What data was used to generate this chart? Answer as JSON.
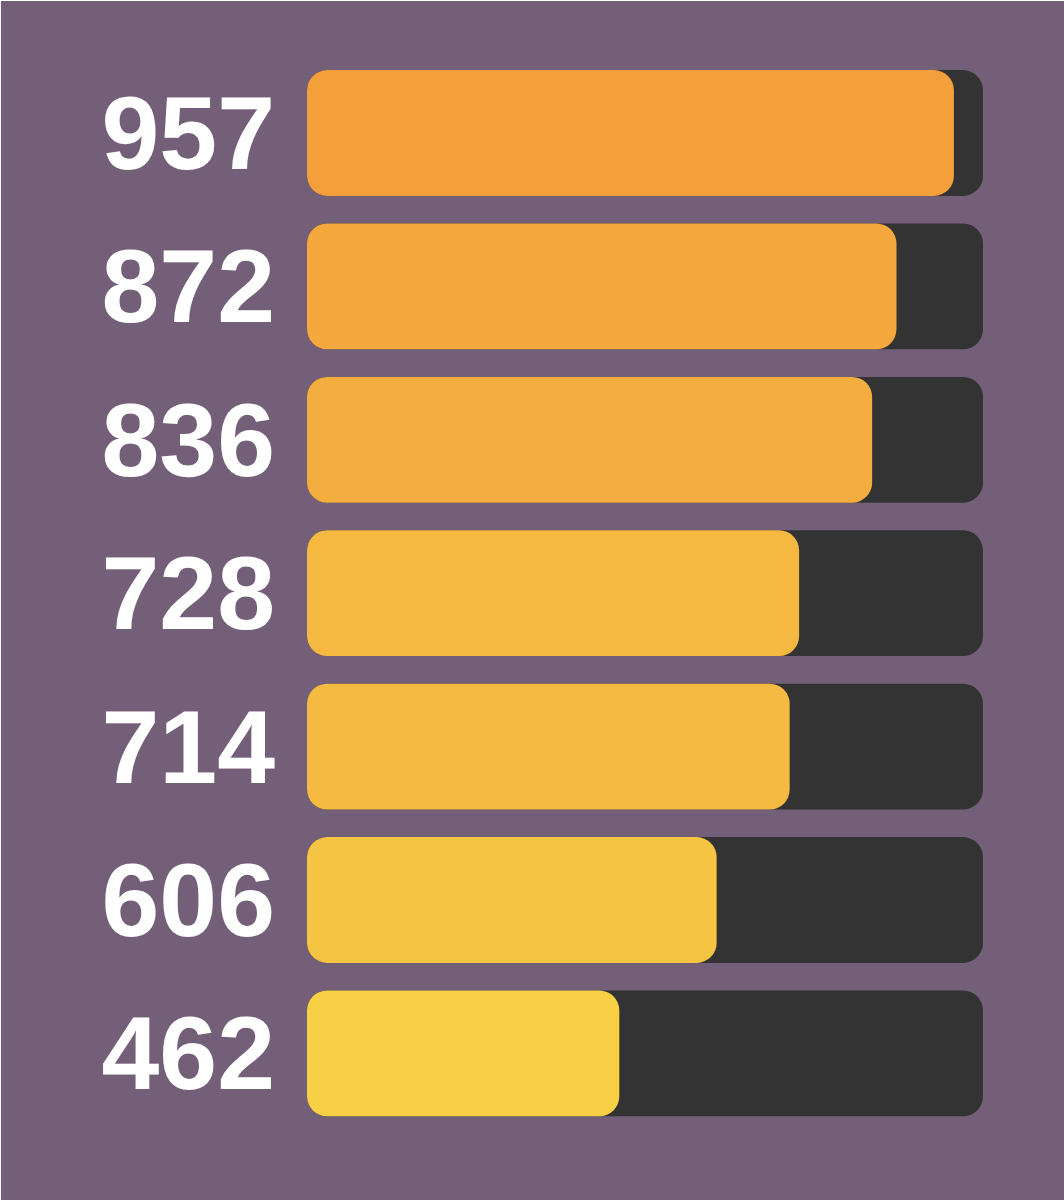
{
  "chart_data": {
    "type": "bar",
    "orientation": "horizontal",
    "categories": [
      null,
      null,
      null,
      null,
      null,
      null,
      null
    ],
    "values": [
      957,
      872,
      836,
      728,
      714,
      606,
      462
    ],
    "colors": [
      "#f39f3c",
      "#f4a83e",
      "#f4ad3f",
      "#f5b841",
      "#f5ba41",
      "#f6c443",
      "#f7d046"
    ],
    "xlim": [
      0,
      1000
    ],
    "data_labels": true
  }
}
